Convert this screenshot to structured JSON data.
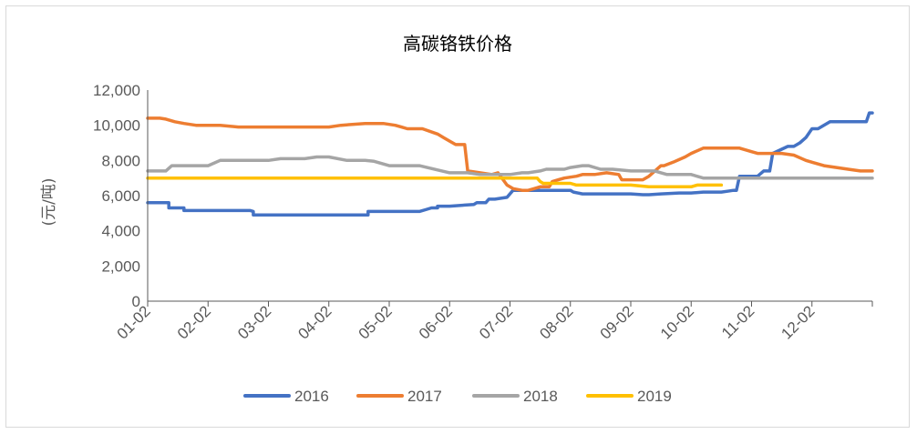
{
  "chart_data": {
    "type": "line",
    "title": "高碳铬铁价格",
    "ylabel": "(元/吨)",
    "xlabel": "",
    "ylim": [
      0,
      12000
    ],
    "yticks": [
      "0",
      "2,000",
      "4,000",
      "6,000",
      "8,000",
      "10,000",
      "12,000"
    ],
    "ytick_values": [
      0,
      2000,
      4000,
      6000,
      8000,
      10000,
      12000
    ],
    "xlim": [
      0,
      12
    ],
    "categories": [
      "01-02",
      "02-02",
      "03-02",
      "04-02",
      "05-02",
      "06-02",
      "07-02",
      "08-02",
      "09-02",
      "10-02",
      "11-02",
      "12-02"
    ],
    "grid": false,
    "legend_position": "bottom",
    "series": [
      {
        "name": "2016",
        "color": "#4472C4",
        "x": [
          0,
          0.35,
          0.35,
          0.6,
          0.6,
          1.0,
          1.7,
          1.75,
          1.75,
          2.5,
          2.7,
          3.0,
          3.5,
          3.65,
          3.65,
          4.0,
          4.5,
          4.6,
          4.7,
          4.8,
          4.8,
          5.0,
          5.4,
          5.45,
          5.6,
          5.65,
          5.75,
          5.95,
          6.05,
          6.15,
          6.4,
          6.7,
          6.9,
          7.0,
          7.05,
          7.2,
          7.5,
          8.0,
          8.2,
          8.3,
          8.5,
          8.8,
          9.0,
          9.2,
          9.5,
          9.6,
          9.7,
          9.75,
          9.8,
          10.1,
          10.2,
          10.3,
          10.35,
          10.6,
          10.7,
          10.8,
          10.9,
          11.0,
          11.1,
          11.3,
          11.5,
          11.9,
          11.95,
          12.0
        ],
        "y": [
          5600,
          5600,
          5300,
          5300,
          5150,
          5150,
          5150,
          5100,
          4900,
          4900,
          4900,
          4900,
          4900,
          4900,
          5100,
          5100,
          5100,
          5200,
          5300,
          5300,
          5400,
          5400,
          5500,
          5600,
          5600,
          5800,
          5800,
          5900,
          6300,
          6300,
          6300,
          6300,
          6300,
          6300,
          6200,
          6100,
          6100,
          6100,
          6050,
          6050,
          6100,
          6150,
          6150,
          6200,
          6200,
          6250,
          6300,
          6300,
          7100,
          7100,
          7400,
          7400,
          8400,
          8800,
          8800,
          9000,
          9300,
          9800,
          9800,
          10200,
          10200,
          10200,
          10700,
          10700
        ]
      },
      {
        "name": "2017",
        "color": "#ED7D31",
        "x": [
          0,
          0.2,
          0.3,
          0.45,
          0.6,
          0.8,
          1.0,
          1.2,
          1.5,
          2.0,
          2.4,
          2.45,
          2.7,
          2.8,
          3.0,
          3.2,
          3.6,
          3.9,
          4.0,
          4.1,
          4.2,
          4.3,
          4.55,
          4.8,
          4.9,
          5.0,
          5.1,
          5.25,
          5.3,
          5.5,
          5.7,
          5.8,
          5.95,
          6.05,
          6.2,
          6.25,
          6.3,
          6.4,
          6.5,
          6.55,
          6.6,
          6.65,
          6.7,
          6.8,
          6.9,
          7.1,
          7.2,
          7.3,
          7.4,
          7.6,
          7.8,
          7.85,
          8.0,
          8.1,
          8.2,
          8.3,
          8.5,
          8.55,
          8.7,
          8.9,
          9.0,
          9.2,
          9.4,
          9.5,
          9.6,
          9.7,
          9.8,
          10.0,
          10.1,
          10.15,
          10.5,
          10.7,
          10.9,
          11.0,
          11.2,
          11.6,
          11.8,
          12.0
        ],
        "y": [
          10400,
          10400,
          10350,
          10200,
          10100,
          10000,
          10000,
          10000,
          9900,
          9900,
          9900,
          9900,
          9900,
          9900,
          9900,
          10000,
          10100,
          10100,
          10050,
          10000,
          9900,
          9800,
          9800,
          9500,
          9300,
          9100,
          8900,
          8900,
          7400,
          7300,
          7200,
          7300,
          6600,
          6400,
          6300,
          6300,
          6300,
          6400,
          6500,
          6500,
          6500,
          6500,
          6800,
          6900,
          7000,
          7100,
          7200,
          7200,
          7200,
          7300,
          7200,
          6900,
          6900,
          6900,
          6900,
          7100,
          7700,
          7700,
          7900,
          8200,
          8400,
          8700,
          8700,
          8700,
          8700,
          8700,
          8700,
          8500,
          8400,
          8400,
          8400,
          8300,
          8000,
          7900,
          7700,
          7500,
          7400,
          7400
        ]
      },
      {
        "name": "2018",
        "color": "#A5A5A5",
        "x": [
          0,
          0.3,
          0.4,
          0.7,
          0.8,
          1.0,
          1.2,
          1.4,
          2.0,
          2.2,
          2.4,
          2.5,
          2.6,
          2.8,
          3.0,
          3.3,
          3.5,
          3.6,
          3.75,
          4.0,
          4.2,
          4.5,
          5.0,
          5.3,
          5.5,
          5.6,
          5.75,
          5.9,
          6.0,
          6.2,
          6.3,
          6.5,
          6.6,
          6.8,
          6.9,
          7.0,
          7.2,
          7.3,
          7.5,
          7.7,
          8.0,
          8.2,
          8.4,
          8.5,
          8.6,
          8.8,
          9.0,
          9.2,
          9.4,
          9.5,
          9.6,
          9.7,
          9.8,
          10.0,
          10.5,
          11.0,
          12.0
        ],
        "y": [
          7400,
          7400,
          7700,
          7700,
          7700,
          7700,
          8000,
          8000,
          8000,
          8100,
          8100,
          8100,
          8100,
          8200,
          8200,
          8000,
          8000,
          8000,
          7950,
          7700,
          7700,
          7700,
          7300,
          7300,
          7200,
          7200,
          7200,
          7200,
          7200,
          7300,
          7300,
          7400,
          7500,
          7500,
          7500,
          7600,
          7700,
          7700,
          7500,
          7500,
          7400,
          7400,
          7400,
          7300,
          7200,
          7200,
          7200,
          7000,
          7000,
          7000,
          7000,
          7000,
          7000,
          7000,
          7000,
          7000,
          7000
        ]
      },
      {
        "name": "2019",
        "color": "#FFC000",
        "x": [
          0,
          1.0,
          2.0,
          3.0,
          4.0,
          5.0,
          6.0,
          6.45,
          6.5,
          6.55,
          7.0,
          7.1,
          7.3,
          7.5,
          8.0,
          8.3,
          8.4,
          8.6,
          8.8,
          9.0,
          9.1,
          9.3,
          9.5
        ],
        "y": [
          7000,
          7000,
          7000,
          7000,
          7000,
          7000,
          7000,
          7000,
          6800,
          6700,
          6700,
          6600,
          6600,
          6600,
          6600,
          6500,
          6500,
          6500,
          6500,
          6500,
          6600,
          6600,
          6600
        ]
      }
    ]
  }
}
